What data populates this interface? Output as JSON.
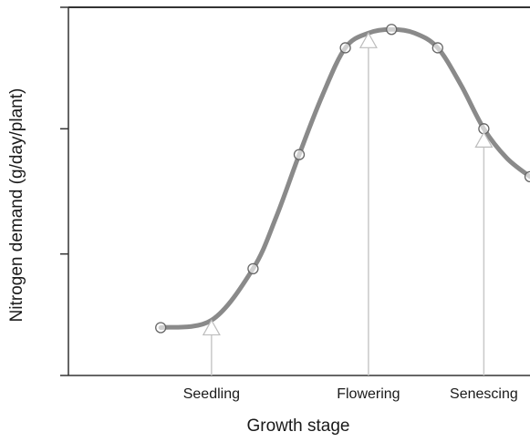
{
  "chart_data": {
    "type": "line",
    "title": "",
    "xlabel": "Growth stage",
    "ylabel": "Nitrogen demand (g/day/plant)",
    "xlim": [
      0,
      100
    ],
    "ylim": [
      0,
      100
    ],
    "grid": false,
    "legend": "none",
    "stage_labels": [
      {
        "label": "Seedling",
        "x": 31
      },
      {
        "label": "Flowering",
        "x": 65
      },
      {
        "label": "Senescing",
        "x": 90
      }
    ],
    "yticks": [
      0,
      33,
      67,
      100
    ],
    "series": [
      {
        "values": [
          {
            "x": 20,
            "y": 13
          },
          {
            "x": 40,
            "y": 29
          },
          {
            "x": 50,
            "y": 60
          },
          {
            "x": 60,
            "y": 89
          },
          {
            "x": 70,
            "y": 94
          },
          {
            "x": 80,
            "y": 89
          },
          {
            "x": 90,
            "y": 67
          },
          {
            "x": 100,
            "y": 54
          }
        ],
        "color": "#888888"
      }
    ],
    "curve_points": [
      {
        "x": 20,
        "y": 13
      },
      {
        "x": 31,
        "y": 15
      },
      {
        "x": 40,
        "y": 29
      },
      {
        "x": 45,
        "y": 43
      },
      {
        "x": 50,
        "y": 60
      },
      {
        "x": 55,
        "y": 76
      },
      {
        "x": 60,
        "y": 89
      },
      {
        "x": 65,
        "y": 93
      },
      {
        "x": 70,
        "y": 94
      },
      {
        "x": 75,
        "y": 93
      },
      {
        "x": 80,
        "y": 89
      },
      {
        "x": 85,
        "y": 79
      },
      {
        "x": 90,
        "y": 67
      },
      {
        "x": 95,
        "y": 59
      },
      {
        "x": 100,
        "y": 54
      }
    ],
    "markers": [
      {
        "label": "Seedling",
        "x": 31,
        "y": 14
      },
      {
        "label": "Flowering",
        "x": 65,
        "y": 92
      },
      {
        "label": "Senescing",
        "x": 90,
        "y": 65
      }
    ],
    "colors": {
      "curve": "#8a8a8a",
      "marker_fill": "#ffffff",
      "marker_stroke": "#666666",
      "stage_line": "#c8c8c8",
      "axis": "#333333"
    }
  }
}
